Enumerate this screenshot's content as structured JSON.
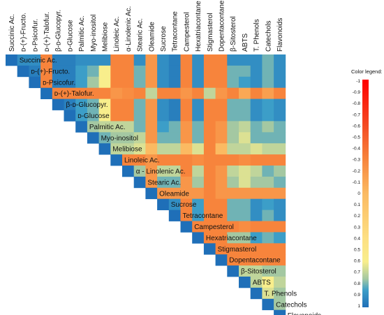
{
  "chart_data": {
    "type": "heatmap",
    "variables": [
      "Succinic Ac.",
      "ᴅ-(+)-Fructo.",
      "ᴅ-Psicofur.",
      "ᴅ-(+)-Talofur.",
      "β-ᴅ-Glucopyr.",
      "ᴅ-Glucose",
      "Palmitic Ac.",
      "Myo-inositol",
      "Melibiose",
      "Linoleic Ac.",
      "α-Linolenic Ac.",
      "Stearic Ac.",
      "Oleamide",
      "Sucrose",
      "Tetracontane",
      "Campesterol",
      "Hexatriacontane",
      "Stigmasterol",
      "Dopentacontane",
      "β-Sitosterol",
      "ABTS",
      "T. Phenols",
      "Catechols",
      "Flavonoids"
    ],
    "row_labels": [
      "Succinic Ac.",
      "ᴅ-(+)-Fructo.",
      "ᴅ-Psicofur.",
      "ᴅ-(+)-Talofur.",
      "β-ᴅ-Glucopyr.",
      "ᴅ-Glucose",
      "Palmitic Ac.",
      "Myo-inositol",
      "Melibiose",
      "Linoleic Ac.",
      "α - Linolenic Ac.",
      "Stearic Ac.",
      "Oleamide",
      "Sucrose",
      "Tetracontane",
      "Campesterol",
      "Hexatriacontane",
      "Stigmasterol",
      "Dopentacontane",
      "β-Sitosterol",
      "ABTS",
      "T. Phenols",
      "Catechols",
      "Flavonoids"
    ],
    "matrix_shape": "upper-triangle",
    "value_range": [
      -1,
      1
    ],
    "correlations": [
      [
        1.0,
        0.9,
        0.9,
        -0.3,
        0.95,
        0.95,
        0.9,
        0.9,
        0.9,
        -0.3,
        -0.3,
        0.9,
        -0.2,
        0.9,
        0.95,
        -0.3,
        0.9,
        -0.3,
        -0.3,
        0.9,
        0.9,
        0.9,
        0.8,
        0.9
      ],
      [
        null,
        1.0,
        0.95,
        -0.3,
        0.95,
        0.95,
        0.85,
        0.8,
        0.6,
        -0.3,
        -0.3,
        0.8,
        -0.2,
        0.9,
        0.95,
        -0.3,
        0.9,
        -0.3,
        -0.3,
        0.8,
        0.8,
        0.9,
        0.8,
        0.9
      ],
      [
        null,
        null,
        1.0,
        -0.3,
        0.95,
        0.95,
        0.85,
        0.75,
        0.6,
        -0.3,
        -0.3,
        0.8,
        -0.2,
        0.9,
        0.95,
        -0.3,
        0.9,
        -0.3,
        -0.3,
        0.8,
        0.85,
        0.9,
        0.8,
        0.9
      ],
      [
        null,
        null,
        null,
        1.0,
        -0.3,
        -0.3,
        -0.3,
        -0.3,
        -0.3,
        -0.2,
        -0.25,
        -0.3,
        0.7,
        -0.3,
        -0.3,
        -0.2,
        -0.3,
        0.7,
        -0.2,
        -0.3,
        -0.1,
        -0.3,
        -0.15,
        -0.3
      ],
      [
        null,
        null,
        null,
        null,
        1.0,
        0.95,
        0.85,
        0.8,
        0.6,
        -0.3,
        -0.3,
        0.8,
        -0.2,
        0.9,
        0.95,
        -0.3,
        0.9,
        -0.3,
        -0.3,
        0.8,
        0.8,
        0.9,
        0.85,
        0.9
      ],
      [
        null,
        null,
        null,
        null,
        null,
        1.0,
        0.85,
        0.8,
        0.6,
        -0.3,
        -0.3,
        0.8,
        -0.2,
        0.9,
        0.95,
        -0.3,
        0.9,
        -0.3,
        -0.3,
        0.8,
        0.8,
        0.9,
        0.85,
        0.9
      ],
      [
        null,
        null,
        null,
        null,
        null,
        null,
        1.0,
        0.75,
        0.7,
        0.7,
        0.7,
        0.8,
        -0.2,
        0.85,
        0.8,
        -0.2,
        0.8,
        -0.3,
        -0.2,
        0.75,
        0.7,
        0.8,
        0.75,
        0.8
      ],
      [
        null,
        null,
        null,
        null,
        null,
        null,
        null,
        1.0,
        0.8,
        0.75,
        0.75,
        0.7,
        -0.2,
        0.8,
        0.8,
        -0.2,
        0.8,
        -0.3,
        -0.2,
        0.75,
        0.65,
        0.8,
        0.8,
        0.8
      ],
      [
        null,
        null,
        null,
        null,
        null,
        null,
        null,
        null,
        1.0,
        0.7,
        0.7,
        0.65,
        0.0,
        0.7,
        0.7,
        0.0,
        0.65,
        -0.3,
        0.0,
        0.7,
        0.7,
        0.65,
        0.7,
        0.7
      ],
      [
        null,
        null,
        null,
        null,
        null,
        null,
        null,
        null,
        null,
        1.0,
        -0.3,
        -0.3,
        -0.2,
        -0.3,
        -0.3,
        -0.3,
        -0.25,
        -0.3,
        -0.3,
        -0.3,
        -0.25,
        -0.3,
        -0.3,
        -0.3
      ],
      [
        null,
        null,
        null,
        null,
        null,
        null,
        null,
        null,
        null,
        null,
        1.0,
        0.75,
        -0.2,
        0.7,
        0.7,
        -0.3,
        0.7,
        -0.3,
        -0.2,
        0.7,
        0.65,
        0.7,
        0.8,
        0.75
      ],
      [
        null,
        null,
        null,
        null,
        null,
        null,
        null,
        null,
        null,
        null,
        null,
        1.0,
        -0.2,
        0.8,
        0.8,
        -0.2,
        0.75,
        -0.3,
        -0.2,
        0.75,
        0.65,
        0.75,
        0.75,
        0.8
      ],
      [
        null,
        null,
        null,
        null,
        null,
        null,
        null,
        null,
        null,
        null,
        null,
        null,
        1.0,
        -0.2,
        -0.2,
        -0.2,
        -0.2,
        -0.3,
        -0.2,
        -0.2,
        -0.2,
        -0.2,
        -0.2,
        -0.2
      ],
      [
        null,
        null,
        null,
        null,
        null,
        null,
        null,
        null,
        null,
        null,
        null,
        null,
        null,
        1.0,
        0.9,
        -0.3,
        0.85,
        -0.3,
        -0.3,
        0.8,
        0.8,
        0.9,
        0.85,
        0.9
      ],
      [
        null,
        null,
        null,
        null,
        null,
        null,
        null,
        null,
        null,
        null,
        null,
        null,
        null,
        null,
        1.0,
        -0.3,
        0.85,
        -0.3,
        -0.3,
        0.8,
        0.8,
        0.9,
        0.8,
        0.9
      ],
      [
        null,
        null,
        null,
        null,
        null,
        null,
        null,
        null,
        null,
        null,
        null,
        null,
        null,
        null,
        null,
        1.0,
        -0.3,
        -0.3,
        -0.3,
        -0.3,
        -0.25,
        -0.3,
        -0.3,
        -0.3
      ],
      [
        null,
        null,
        null,
        null,
        null,
        null,
        null,
        null,
        null,
        null,
        null,
        null,
        null,
        null,
        null,
        null,
        1.0,
        -0.3,
        -0.3,
        0.75,
        0.75,
        0.85,
        0.8,
        0.85
      ],
      [
        null,
        null,
        null,
        null,
        null,
        null,
        null,
        null,
        null,
        null,
        null,
        null,
        null,
        null,
        null,
        null,
        null,
        1.0,
        -0.3,
        -0.3,
        -0.3,
        -0.3,
        -0.3,
        -0.3
      ],
      [
        null,
        null,
        null,
        null,
        null,
        null,
        null,
        null,
        null,
        null,
        null,
        null,
        null,
        null,
        null,
        null,
        null,
        null,
        1.0,
        -0.3,
        -0.3,
        -0.3,
        -0.3,
        -0.3
      ],
      [
        null,
        null,
        null,
        null,
        null,
        null,
        null,
        null,
        null,
        null,
        null,
        null,
        null,
        null,
        null,
        null,
        null,
        null,
        null,
        1.0,
        0.7,
        0.7,
        0.75,
        0.75
      ],
      [
        null,
        null,
        null,
        null,
        null,
        null,
        null,
        null,
        null,
        null,
        null,
        null,
        null,
        null,
        null,
        null,
        null,
        null,
        null,
        null,
        1.0,
        0.7,
        0.6,
        0.7
      ],
      [
        null,
        null,
        null,
        null,
        null,
        null,
        null,
        null,
        null,
        null,
        null,
        null,
        null,
        null,
        null,
        null,
        null,
        null,
        null,
        null,
        null,
        1.0,
        0.65,
        0.75
      ],
      [
        null,
        null,
        null,
        null,
        null,
        null,
        null,
        null,
        null,
        null,
        null,
        null,
        null,
        null,
        null,
        null,
        null,
        null,
        null,
        null,
        null,
        null,
        1.0,
        0.75
      ],
      [
        null,
        null,
        null,
        null,
        null,
        null,
        null,
        null,
        null,
        null,
        null,
        null,
        null,
        null,
        null,
        null,
        null,
        null,
        null,
        null,
        null,
        null,
        null,
        1.0
      ]
    ],
    "legend": {
      "title": "Color legend:",
      "placement": "right",
      "ticks": [
        "-1",
        "-0.9",
        "-0.8",
        "-0.7",
        "-0.6",
        "-0.5",
        "-0.4",
        "-0.3",
        "-0.2",
        "-0.1",
        "0",
        "0.1",
        "0.2",
        "0.3",
        "0.4",
        "0.5",
        "0.6",
        "0.7",
        "0.8",
        "0.9",
        "1"
      ]
    },
    "colorscale": [
      {
        "value": -1.0,
        "color": "#ff0000"
      },
      {
        "value": -0.6,
        "color": "#f44a22"
      },
      {
        "value": -0.3,
        "color": "#f7843c"
      },
      {
        "value": 0.0,
        "color": "#fbba62"
      },
      {
        "value": 0.4,
        "color": "#fde083"
      },
      {
        "value": 0.6,
        "color": "#f8ee8c"
      },
      {
        "value": 0.75,
        "color": "#a4c8a2"
      },
      {
        "value": 0.85,
        "color": "#3c9ec8"
      },
      {
        "value": 1.0,
        "color": "#1f6fb8"
      }
    ]
  }
}
